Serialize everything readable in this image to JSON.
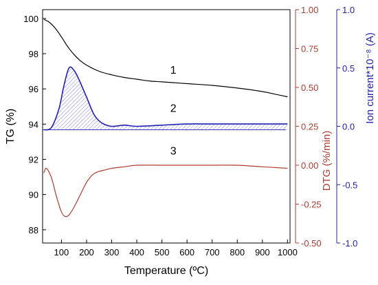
{
  "chart_data": {
    "type": "line",
    "xlabel": "Temperature (ºC)",
    "xlim": [
      25,
      1010
    ],
    "xticks": [
      100,
      200,
      300,
      400,
      500,
      600,
      700,
      800,
      900,
      1000
    ],
    "axes": {
      "tg": {
        "label": "TG (%)",
        "lim": [
          87.25,
          100.5
        ],
        "ticks": [
          88,
          90,
          92,
          94,
          96,
          98,
          100
        ],
        "color": "#000000"
      },
      "dtg": {
        "label": "DTG (%/min)",
        "lim": [
          -0.5,
          1.0
        ],
        "ticks": [
          -0.5,
          -0.25,
          0.0,
          0.25,
          0.5,
          0.75,
          1.0
        ],
        "tick_labels": [
          "-0.50",
          "-0.25",
          "0.00",
          "0.25",
          "0.50",
          "0.75",
          "1.00"
        ],
        "color": "#b03a2e"
      },
      "ion": {
        "label": "Ion current*10⁻⁸ (A)",
        "lim": [
          -1.0,
          1.0
        ],
        "ticks": [
          -1.0,
          -0.5,
          0.0,
          0.5,
          1.0
        ],
        "tick_labels": [
          "-1.0",
          "-0.5",
          "0.0",
          "0.5",
          "1.0"
        ],
        "color": "#1f1fb4"
      }
    },
    "series": [
      {
        "label": "1",
        "axis": "tg",
        "color": "#000000",
        "x": [
          30,
          50,
          75,
          100,
          125,
          150,
          175,
          200,
          250,
          300,
          350,
          400,
          450,
          500,
          600,
          700,
          800,
          900,
          950,
          1000
        ],
        "y": [
          99.95,
          99.8,
          99.45,
          98.95,
          98.4,
          97.95,
          97.6,
          97.35,
          97.0,
          96.8,
          96.65,
          96.55,
          96.45,
          96.4,
          96.3,
          96.2,
          96.05,
          95.85,
          95.7,
          95.55
        ]
      },
      {
        "label": "2",
        "axis": "ion",
        "color": "#1f1fb4",
        "x": [
          30,
          60,
          90,
          110,
          130,
          150,
          170,
          200,
          230,
          260,
          300,
          350,
          400,
          500,
          600,
          700,
          800,
          900,
          1000
        ],
        "y": [
          -0.03,
          -0.01,
          0.15,
          0.35,
          0.5,
          0.48,
          0.4,
          0.25,
          0.1,
          0.03,
          0.0,
          0.01,
          0.0,
          0.01,
          0.02,
          0.02,
          0.02,
          0.02,
          0.02
        ]
      },
      {
        "label": "3",
        "axis": "dtg",
        "color": "#b03a2e",
        "x": [
          30,
          40,
          60,
          80,
          100,
          115,
          130,
          150,
          175,
          200,
          225,
          250,
          275,
          300,
          350,
          400,
          500,
          600,
          700,
          800,
          900,
          1000
        ],
        "y": [
          -0.05,
          -0.02,
          -0.08,
          -0.2,
          -0.3,
          -0.33,
          -0.32,
          -0.27,
          -0.19,
          -0.11,
          -0.06,
          -0.04,
          -0.03,
          -0.02,
          -0.01,
          0.0,
          0.0,
          0.0,
          0.0,
          0.0,
          -0.01,
          -0.02
        ]
      }
    ],
    "grid": false,
    "legend": "none"
  }
}
